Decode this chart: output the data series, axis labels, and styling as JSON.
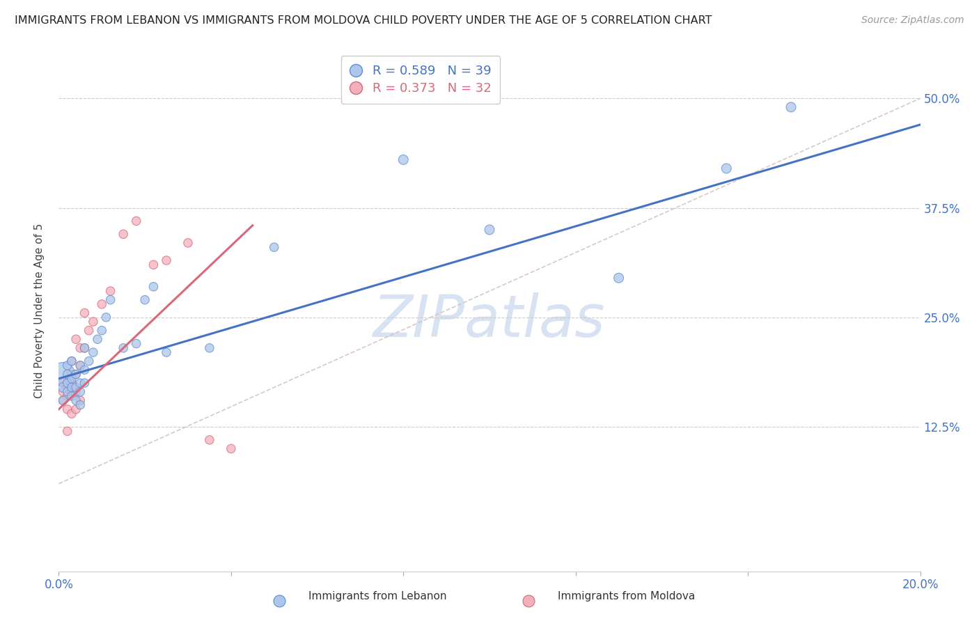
{
  "title": "IMMIGRANTS FROM LEBANON VS IMMIGRANTS FROM MOLDOVA CHILD POVERTY UNDER THE AGE OF 5 CORRELATION CHART",
  "source": "Source: ZipAtlas.com",
  "ylabel": "Child Poverty Under the Age of 5",
  "xlim": [
    0.0,
    0.2
  ],
  "ylim": [
    -0.04,
    0.5556
  ],
  "ytick_positions": [
    0.125,
    0.25,
    0.375,
    0.5
  ],
  "ytick_labels": [
    "12.5%",
    "25.0%",
    "37.5%",
    "50.0%"
  ],
  "lebanon_R": 0.589,
  "lebanon_N": 39,
  "moldova_R": 0.373,
  "moldova_N": 32,
  "lebanon_color": "#aec6e8",
  "moldova_color": "#f2b0bc",
  "lebanon_edge_color": "#5b8fd4",
  "moldova_edge_color": "#d9687a",
  "lebanon_line_color": "#4472c4",
  "moldova_line_color": "#d9687a",
  "diag_line_color": "#d8c0c8",
  "watermark": "ZIPatlas",
  "watermark_color": "#d0ddf0",
  "lebanon_x": [
    0.001,
    0.001,
    0.001,
    0.002,
    0.002,
    0.002,
    0.002,
    0.003,
    0.003,
    0.003,
    0.003,
    0.004,
    0.004,
    0.004,
    0.005,
    0.005,
    0.005,
    0.005,
    0.006,
    0.006,
    0.006,
    0.007,
    0.008,
    0.009,
    0.01,
    0.011,
    0.012,
    0.015,
    0.018,
    0.02,
    0.022,
    0.025,
    0.035,
    0.05,
    0.08,
    0.1,
    0.13,
    0.155,
    0.17
  ],
  "lebanon_y": [
    0.185,
    0.17,
    0.155,
    0.165,
    0.175,
    0.185,
    0.195,
    0.16,
    0.17,
    0.18,
    0.2,
    0.155,
    0.17,
    0.185,
    0.15,
    0.165,
    0.175,
    0.195,
    0.175,
    0.19,
    0.215,
    0.2,
    0.21,
    0.225,
    0.235,
    0.25,
    0.27,
    0.215,
    0.22,
    0.27,
    0.285,
    0.21,
    0.215,
    0.33,
    0.43,
    0.35,
    0.295,
    0.42,
    0.49
  ],
  "moldova_x": [
    0.001,
    0.001,
    0.001,
    0.002,
    0.002,
    0.002,
    0.002,
    0.003,
    0.003,
    0.003,
    0.003,
    0.003,
    0.004,
    0.004,
    0.004,
    0.004,
    0.005,
    0.005,
    0.005,
    0.006,
    0.006,
    0.007,
    0.008,
    0.01,
    0.012,
    0.015,
    0.018,
    0.022,
    0.025,
    0.03,
    0.035,
    0.04
  ],
  "moldova_y": [
    0.155,
    0.165,
    0.175,
    0.12,
    0.145,
    0.16,
    0.175,
    0.14,
    0.165,
    0.175,
    0.185,
    0.2,
    0.145,
    0.165,
    0.185,
    0.225,
    0.155,
    0.195,
    0.215,
    0.215,
    0.255,
    0.235,
    0.245,
    0.265,
    0.28,
    0.345,
    0.36,
    0.31,
    0.315,
    0.335,
    0.11,
    0.1
  ],
  "lebanon_sizes": [
    600,
    100,
    80,
    80,
    80,
    80,
    80,
    80,
    80,
    80,
    80,
    80,
    80,
    80,
    80,
    80,
    80,
    80,
    80,
    80,
    80,
    80,
    80,
    80,
    80,
    80,
    80,
    80,
    80,
    80,
    80,
    80,
    80,
    80,
    100,
    100,
    100,
    100,
    100
  ],
  "moldova_sizes": [
    80,
    80,
    80,
    80,
    80,
    80,
    80,
    80,
    80,
    80,
    80,
    80,
    80,
    80,
    80,
    80,
    80,
    80,
    80,
    80,
    80,
    80,
    80,
    80,
    80,
    80,
    80,
    80,
    80,
    80,
    80,
    80
  ],
  "lebanon_line_x0": 0.0,
  "lebanon_line_y0": 0.18,
  "lebanon_line_x1": 0.2,
  "lebanon_line_y1": 0.47,
  "moldova_line_x0": 0.0,
  "moldova_line_y0": 0.145,
  "moldova_line_x1": 0.045,
  "moldova_line_y1": 0.355
}
